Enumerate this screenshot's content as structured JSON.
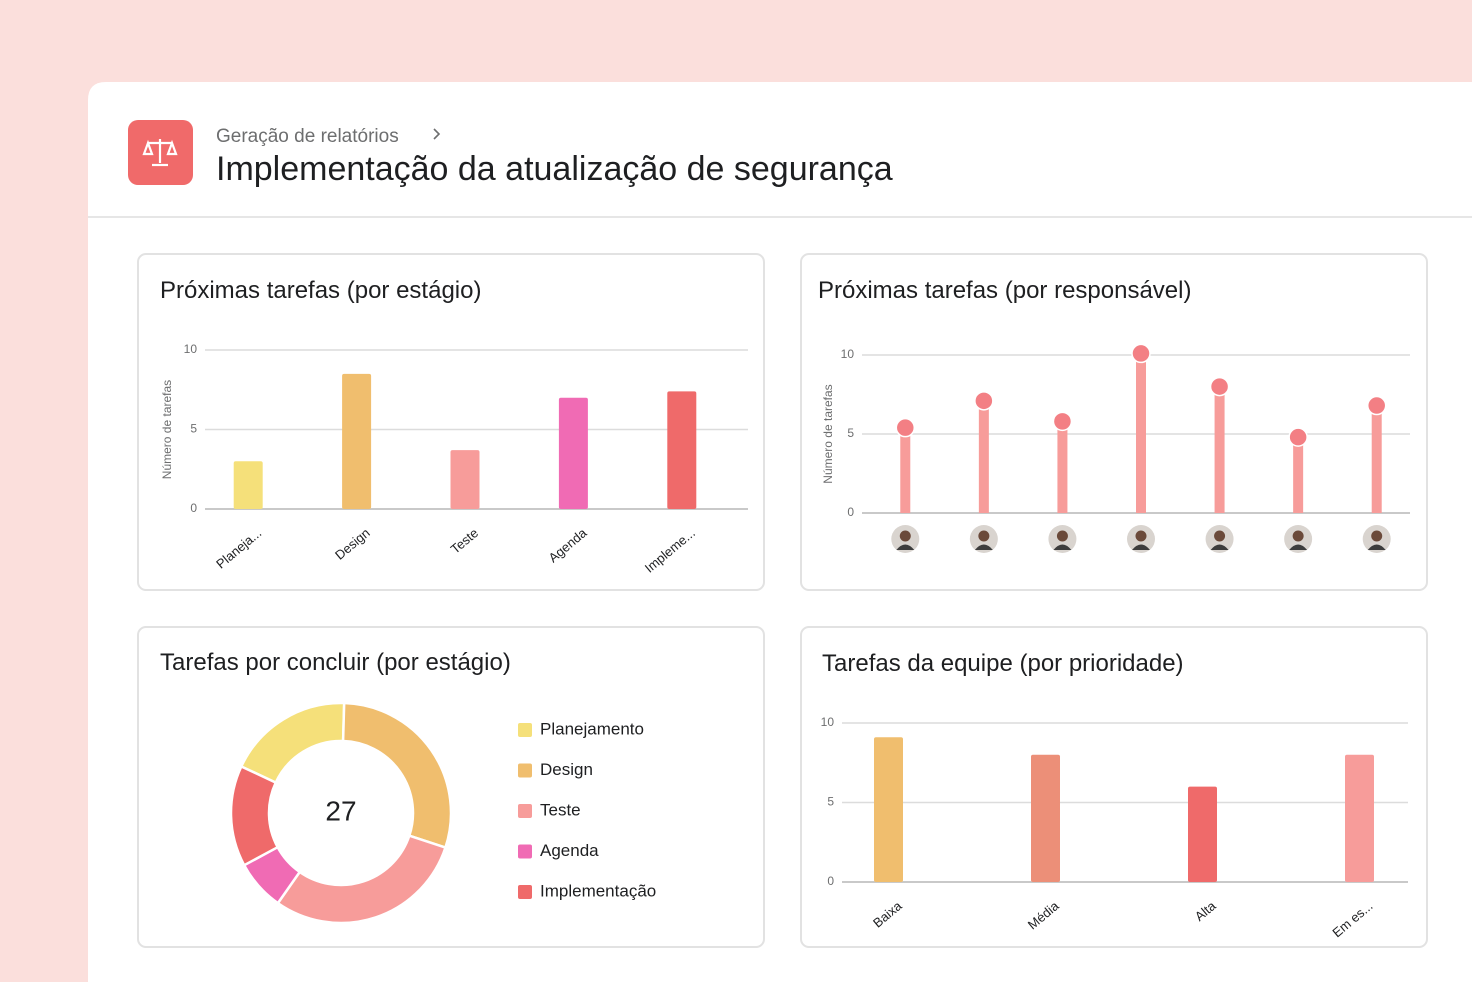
{
  "header": {
    "breadcrumb": "Geração de relatórios",
    "title": "Implementação da atualização de segurança"
  },
  "chart_data": [
    {
      "type": "bar",
      "title": "Próximas tarefas (por estágio)",
      "ylabel": "Número de tarefas",
      "categories": [
        "Planeja...",
        "Design",
        "Teste",
        "Agenda",
        "Impleme..."
      ],
      "values": [
        3,
        8.5,
        3.7,
        7,
        7.4
      ],
      "colors": [
        "#f5e07a",
        "#f0be6e",
        "#f79c9a",
        "#f06bb4",
        "#ef6a6a"
      ],
      "ylim": [
        0,
        10
      ],
      "yticks": [
        0,
        5,
        10
      ],
      "grid": true
    },
    {
      "type": "lollipop",
      "title": "Próximas tarefas (por responsável)",
      "ylabel": "Número de tarefas",
      "categories": [
        null,
        null,
        null,
        null,
        null,
        null,
        null
      ],
      "values": [
        5.4,
        7.1,
        5.8,
        10.1,
        8,
        4.8,
        6.8
      ],
      "color": "#f79c9a",
      "dot_color": "#f37f84",
      "ylim": [
        0,
        10
      ],
      "yticks": [
        0,
        5,
        10
      ],
      "grid": true
    },
    {
      "type": "donut",
      "title": "Tarefas por concluir (por estágio)",
      "total": 27,
      "categories": [
        "Planejamento",
        "Design",
        "Teste",
        "Agenda",
        "Implementação"
      ],
      "values": [
        5,
        8,
        8,
        2,
        4
      ],
      "colors": [
        "#f5e07a",
        "#f0be6e",
        "#f79c9a",
        "#f06bb4",
        "#ef6a6a"
      ]
    },
    {
      "type": "bar",
      "title": "Tarefas da equipe (por prioridade)",
      "categories": [
        "Baixa",
        "Média",
        "Alta",
        "Em es..."
      ],
      "values": [
        9.1,
        8,
        6,
        8
      ],
      "colors": [
        "#f0be6e",
        "#ec8f78",
        "#ef6a6a",
        "#f79c9a"
      ],
      "ylim": [
        0,
        10
      ],
      "yticks": [
        0,
        5,
        10
      ],
      "grid": true
    }
  ]
}
